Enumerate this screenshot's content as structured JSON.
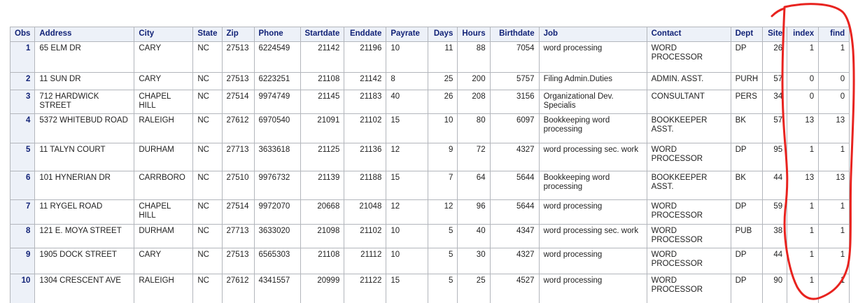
{
  "table": {
    "columns": [
      "Obs",
      "Address",
      "City",
      "State",
      "Zip",
      "Phone",
      "Startdate",
      "Enddate",
      "Payrate",
      "Days",
      "Hours",
      "Birthdate",
      "Job",
      "Contact",
      "Dept",
      "Site",
      "index",
      "find"
    ],
    "rows": [
      [
        "1",
        "65 ELM DR",
        "CARY",
        "NC",
        "27513",
        "6224549",
        "21142",
        "21196",
        "10",
        "11",
        "88",
        "7054",
        "word processing",
        "WORD PROCESSOR",
        "DP",
        "26",
        "1",
        "1"
      ],
      [
        "2",
        "11 SUN DR",
        "CARY",
        "NC",
        "27513",
        "6223251",
        "21108",
        "21142",
        "8",
        "25",
        "200",
        "5757",
        "Filing Admin.Duties",
        "ADMIN. ASST.",
        "PURH",
        "57",
        "0",
        "0"
      ],
      [
        "3",
        "712 HARDWICK STREET",
        "CHAPEL HILL",
        "NC",
        "27514",
        "9974749",
        "21145",
        "21183",
        "40",
        "26",
        "208",
        "3156",
        "Organizational Dev. Specialis",
        "CONSULTANT",
        "PERS",
        "34",
        "0",
        "0"
      ],
      [
        "4",
        "5372 WHITEBUD ROAD",
        "RALEIGH",
        "NC",
        "27612",
        "6970540",
        "21091",
        "21102",
        "15",
        "10",
        "80",
        "6097",
        "Bookkeeping word processing",
        "BOOKKEEPER ASST.",
        "BK",
        "57",
        "13",
        "13"
      ],
      [
        "5",
        "11 TALYN COURT",
        "DURHAM",
        "NC",
        "27713",
        "3633618",
        "21125",
        "21136",
        "12",
        "9",
        "72",
        "4327",
        "word processing sec. work",
        "WORD PROCESSOR",
        "DP",
        "95",
        "1",
        "1"
      ],
      [
        "6",
        "101 HYNERIAN DR",
        "CARRBORO",
        "NC",
        "27510",
        "9976732",
        "21139",
        "21188",
        "15",
        "7",
        "64",
        "5644",
        "Bookkeeping word processing",
        "BOOKKEEPER ASST.",
        "BK",
        "44",
        "13",
        "13"
      ],
      [
        "7",
        "11 RYGEL ROAD",
        "CHAPEL HILL",
        "NC",
        "27514",
        "9972070",
        "20668",
        "21048",
        "12",
        "12",
        "96",
        "5644",
        "word processing",
        "WORD PROCESSOR",
        "DP",
        "59",
        "1",
        "1"
      ],
      [
        "8",
        "121 E. MOYA STREET",
        "DURHAM",
        "NC",
        "27713",
        "3633020",
        "21098",
        "21102",
        "10",
        "5",
        "40",
        "4347",
        "word processing sec. work",
        "WORD PROCESSOR",
        "PUB",
        "38",
        "1",
        "1"
      ],
      [
        "9",
        "1905 DOCK STREET",
        "CARY",
        "NC",
        "27513",
        "6565303",
        "21108",
        "21112",
        "10",
        "5",
        "30",
        "4327",
        "word processing",
        "WORD PROCESSOR",
        "DP",
        "44",
        "1",
        "1"
      ],
      [
        "10",
        "1304 CRESCENT AVE",
        "RALEIGH",
        "NC",
        "27612",
        "4341557",
        "20999",
        "21122",
        "15",
        "5",
        "25",
        "4527",
        "word processing",
        "WORD PROCESSOR",
        "DP",
        "90",
        "1",
        "1"
      ]
    ]
  },
  "annotation": {
    "kind": "hand-drawn-red-loop",
    "encircles": "index and find columns",
    "color": "#e8231f"
  },
  "colors": {
    "header_bg": "#edf1f8",
    "header_text": "#112277",
    "cell_border": "#b3b6bc",
    "cell_text": "#1f1f1f",
    "page_bg": "#ffffff"
  }
}
